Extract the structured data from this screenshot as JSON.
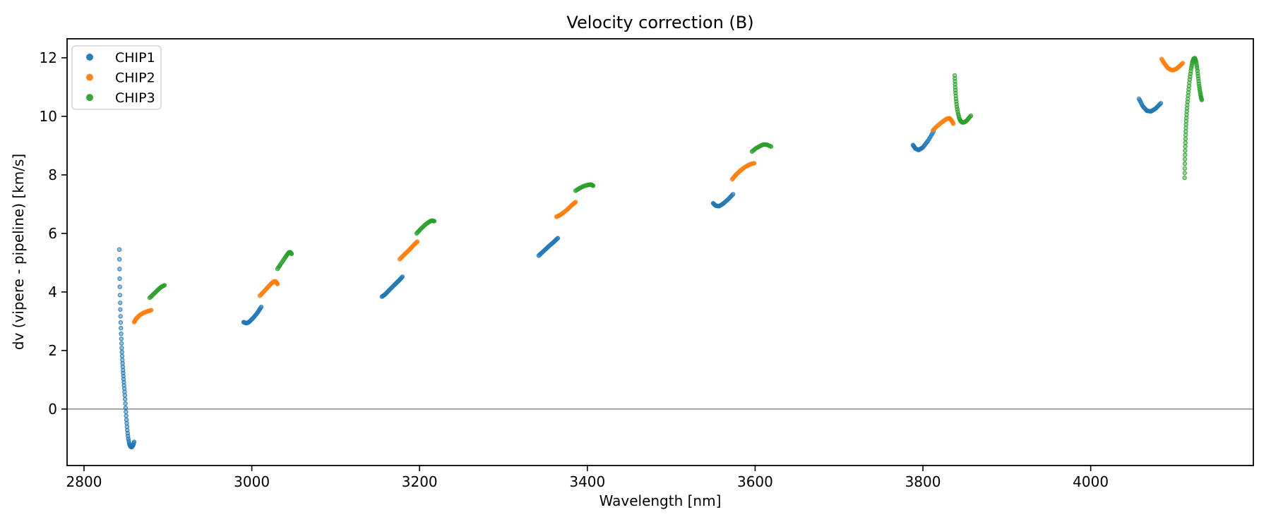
{
  "chart_data": {
    "type": "scatter",
    "title": "Velocity correction (B)",
    "xlabel": "Wavelength [nm]",
    "ylabel": "dv (vipere - pipeline) [km/s]",
    "xlim": [
      2779.8,
      4193.9
    ],
    "ylim": [
      -1.93,
      12.65
    ],
    "xticks": [
      2800,
      3000,
      3200,
      3400,
      3600,
      3800,
      4000
    ],
    "yticks": [
      0,
      2,
      4,
      6,
      8,
      10,
      12
    ],
    "zero_line": {
      "y": 0,
      "color": "#7f7f7f"
    },
    "grid": false,
    "legend": {
      "position": "upper left",
      "entries": [
        {
          "label": "CHIP1",
          "color": "#1f77b4"
        },
        {
          "label": "CHIP2",
          "color": "#ff7f0e"
        },
        {
          "label": "CHIP3",
          "color": "#2ca02c"
        }
      ]
    },
    "series": [
      {
        "name": "CHIP1",
        "color": "#1f77b4",
        "clusters": [
          {
            "n": 55,
            "points": [
              [
                2842.1,
                5.45
              ],
              [
                2842.5,
                4.5
              ],
              [
                2843.0,
                3.7
              ],
              [
                2843.6,
                3.05
              ],
              [
                2844.3,
                2.5
              ],
              [
                2845.0,
                2.05
              ],
              [
                2845.7,
                1.67
              ],
              [
                2846.4,
                1.34
              ],
              [
                2847.1,
                1.05
              ],
              [
                2847.9,
                0.75
              ],
              [
                2848.8,
                0.42
              ],
              [
                2849.7,
                0.0
              ],
              [
                2850.6,
                -0.38
              ],
              [
                2851.6,
                -0.72
              ],
              [
                2852.7,
                -1.0
              ],
              [
                2854.0,
                -1.2
              ],
              [
                2855.5,
                -1.29
              ],
              [
                2857.0,
                -1.3
              ],
              [
                2858.6,
                -1.24
              ],
              [
                2859.8,
                -1.12
              ]
            ]
          },
          {
            "n": 24,
            "points": [
              [
                2990.2,
                2.97
              ],
              [
                2993.5,
                2.93
              ],
              [
                2997.0,
                2.98
              ],
              [
                3002.0,
                3.12
              ],
              [
                3007.0,
                3.3
              ],
              [
                3011.3,
                3.49
              ]
            ]
          },
          {
            "n": 26,
            "points": [
              [
                3155.2,
                3.84
              ],
              [
                3159.0,
                3.92
              ],
              [
                3164.0,
                4.07
              ],
              [
                3170.0,
                4.24
              ],
              [
                3175.0,
                4.38
              ],
              [
                3179.6,
                4.52
              ]
            ]
          },
          {
            "n": 22,
            "points": [
              [
                3342.0,
                5.24
              ],
              [
                3348.0,
                5.4
              ],
              [
                3354.0,
                5.56
              ],
              [
                3360.0,
                5.71
              ],
              [
                3364.8,
                5.84
              ]
            ]
          },
          {
            "n": 24,
            "points": [
              [
                3550.0,
                7.03
              ],
              [
                3553.0,
                6.95
              ],
              [
                3557.0,
                6.93
              ],
              [
                3562.0,
                7.02
              ],
              [
                3568.0,
                7.17
              ],
              [
                3573.6,
                7.34
              ]
            ]
          },
          {
            "n": 26,
            "points": [
              [
                3788.2,
                9.02
              ],
              [
                3791.0,
                8.9
              ],
              [
                3795.0,
                8.85
              ],
              [
                3800.0,
                8.94
              ],
              [
                3806.0,
                9.16
              ],
              [
                3812.6,
                9.48
              ]
            ]
          },
          {
            "n": 26,
            "points": [
              [
                4057.6,
                10.6
              ],
              [
                4062.0,
                10.35
              ],
              [
                4067.0,
                10.19
              ],
              [
                4072.0,
                10.17
              ],
              [
                4078.0,
                10.28
              ],
              [
                4083.6,
                10.45
              ]
            ]
          }
        ]
      },
      {
        "name": "CHIP2",
        "color": "#ff7f0e",
        "clusters": [
          {
            "n": 22,
            "points": [
              [
                2859.8,
                2.97
              ],
              [
                2862.0,
                3.08
              ],
              [
                2866.0,
                3.2
              ],
              [
                2871.0,
                3.29
              ],
              [
                2876.0,
                3.34
              ],
              [
                2880.0,
                3.38
              ]
            ]
          },
          {
            "n": 26,
            "points": [
              [
                3009.6,
                3.87
              ],
              [
                3014.0,
                4.0
              ],
              [
                3019.0,
                4.16
              ],
              [
                3023.0,
                4.28
              ],
              [
                3026.4,
                4.36
              ],
              [
                3028.7,
                4.35
              ],
              [
                3030.6,
                4.27
              ]
            ]
          },
          {
            "n": 22,
            "points": [
              [
                3176.3,
                5.12
              ],
              [
                3182.0,
                5.28
              ],
              [
                3188.0,
                5.45
              ],
              [
                3193.0,
                5.6
              ],
              [
                3197.3,
                5.72
              ]
            ]
          },
          {
            "n": 24,
            "points": [
              [
                3363.1,
                6.57
              ],
              [
                3367.0,
                6.62
              ],
              [
                3371.0,
                6.7
              ],
              [
                3377.0,
                6.84
              ],
              [
                3382.0,
                6.98
              ],
              [
                3385.9,
                7.07
              ]
            ]
          },
          {
            "n": 26,
            "points": [
              [
                3572.7,
                7.85
              ],
              [
                3577.0,
                8.0
              ],
              [
                3582.0,
                8.14
              ],
              [
                3588.0,
                8.27
              ],
              [
                3594.0,
                8.36
              ],
              [
                3598.8,
                8.4
              ]
            ]
          },
          {
            "n": 26,
            "points": [
              [
                3811.8,
                9.52
              ],
              [
                3817.0,
                9.67
              ],
              [
                3823.0,
                9.81
              ],
              [
                3828.0,
                9.91
              ],
              [
                3831.5,
                9.94
              ],
              [
                3834.0,
                9.87
              ],
              [
                3836.2,
                9.75
              ]
            ]
          },
          {
            "n": 28,
            "points": [
              [
                4084.5,
                11.96
              ],
              [
                4088.0,
                11.8
              ],
              [
                4092.0,
                11.65
              ],
              [
                4097.0,
                11.57
              ],
              [
                4102.0,
                11.62
              ],
              [
                4106.0,
                11.72
              ],
              [
                4109.7,
                11.82
              ]
            ]
          }
        ]
      },
      {
        "name": "CHIP3",
        "color": "#2ca02c",
        "clusters": [
          {
            "n": 20,
            "points": [
              [
                2878.3,
                3.8
              ],
              [
                2883.0,
                3.93
              ],
              [
                2888.0,
                4.07
              ],
              [
                2892.0,
                4.17
              ],
              [
                2896.0,
                4.23
              ]
            ]
          },
          {
            "n": 22,
            "points": [
              [
                3030.6,
                4.79
              ],
              [
                3034.0,
                4.93
              ],
              [
                3038.0,
                5.1
              ],
              [
                3041.5,
                5.25
              ],
              [
                3044.1,
                5.35
              ],
              [
                3046.0,
                5.36
              ],
              [
                3047.5,
                5.3
              ]
            ]
          },
          {
            "n": 22,
            "points": [
              [
                3196.5,
                6.0
              ],
              [
                3201.0,
                6.14
              ],
              [
                3206.0,
                6.28
              ],
              [
                3211.0,
                6.39
              ],
              [
                3214.5,
                6.44
              ],
              [
                3217.5,
                6.42
              ]
            ]
          },
          {
            "n": 22,
            "points": [
              [
                3385.9,
                7.46
              ],
              [
                3391.0,
                7.55
              ],
              [
                3396.0,
                7.62
              ],
              [
                3401.0,
                7.66
              ],
              [
                3404.5,
                7.67
              ],
              [
                3406.9,
                7.63
              ]
            ]
          },
          {
            "n": 22,
            "points": [
              [
                3596.3,
                8.8
              ],
              [
                3601.0,
                8.91
              ],
              [
                3606.0,
                8.99
              ],
              [
                3610.0,
                9.04
              ],
              [
                3614.0,
                9.03
              ],
              [
                3619.0,
                8.97
              ]
            ]
          },
          {
            "n": 34,
            "points": [
              [
                3837.9,
                11.4
              ],
              [
                3838.3,
                11.12
              ],
              [
                3838.8,
                10.85
              ],
              [
                3839.5,
                10.58
              ],
              [
                3840.5,
                10.33
              ],
              [
                3841.8,
                10.1
              ],
              [
                3843.4,
                9.93
              ],
              [
                3845.2,
                9.83
              ],
              [
                3847.2,
                9.79
              ],
              [
                3849.5,
                9.8
              ],
              [
                3852.0,
                9.85
              ],
              [
                3854.5,
                9.93
              ],
              [
                3857.2,
                10.02
              ]
            ]
          },
          {
            "n": 66,
            "points": [
              [
                4112.0,
                7.9
              ],
              [
                4112.3,
                8.45
              ],
              [
                4112.7,
                8.95
              ],
              [
                4113.2,
                9.4
              ],
              [
                4113.8,
                9.8
              ],
              [
                4114.6,
                10.18
              ],
              [
                4115.6,
                10.55
              ],
              [
                4116.8,
                10.92
              ],
              [
                4118.2,
                11.3
              ],
              [
                4119.7,
                11.62
              ],
              [
                4121.2,
                11.85
              ],
              [
                4122.7,
                11.97
              ],
              [
                4124.2,
                11.99
              ],
              [
                4125.6,
                11.88
              ],
              [
                4126.9,
                11.65
              ],
              [
                4128.1,
                11.35
              ],
              [
                4129.3,
                11.05
              ],
              [
                4130.5,
                10.82
              ],
              [
                4131.5,
                10.65
              ],
              [
                4132.4,
                10.56
              ]
            ]
          }
        ]
      }
    ]
  }
}
